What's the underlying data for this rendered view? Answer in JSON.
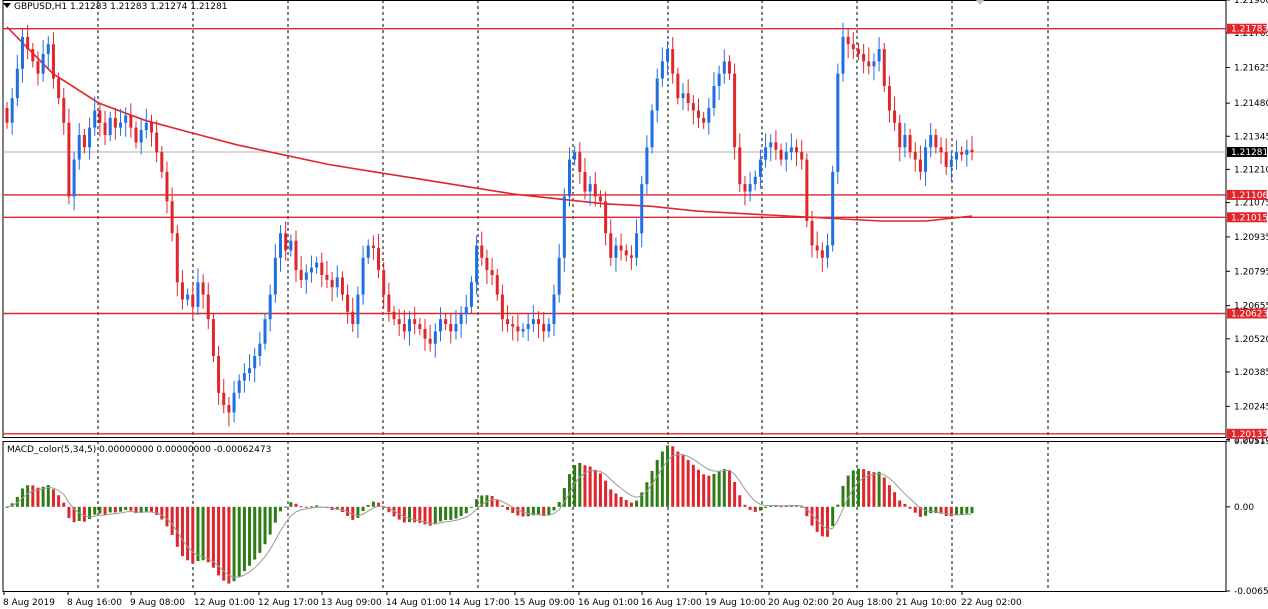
{
  "header": {
    "symbol_caption": "GBPUSD,H1  1.21283  1.21283  1.21274  1.21281",
    "menu_icon": "triangle-down-icon"
  },
  "colors": {
    "bull": "#1f6fe0",
    "bear": "#e0262c",
    "ma": "#e0262c",
    "level": "#e0262c",
    "grid": "#000000",
    "hist_up": "#2e7d14",
    "hist_down": "#e0262c",
    "signal": "#9a9a9a",
    "current_price_tag": "#000000"
  },
  "chart_data": [
    {
      "type": "candlestick",
      "title": "GBPUSD,H1",
      "ylim": [
        1.2012,
        1.219
      ],
      "y_ticks": [
        "1.21900",
        "1.21765",
        "1.21625",
        "1.21480",
        "1.21345",
        "1.21210",
        "1.21075",
        "1.20935",
        "1.20795",
        "1.20655",
        "1.20520",
        "1.20385",
        "1.20245",
        "1.20110"
      ],
      "x_tick_labels": [
        "8 Aug 2019",
        "8 Aug 16:00",
        "9 Aug 08:00",
        "12 Aug 01:00",
        "12 Aug 17:00",
        "13 Aug 09:00",
        "14 Aug 01:00",
        "14 Aug 17:00",
        "15 Aug 09:00",
        "16 Aug 01:00",
        "16 Aug 17:00",
        "19 Aug 10:00",
        "20 Aug 02:00",
        "20 Aug 18:00",
        "21 Aug 10:00",
        "22 Aug 02:00"
      ],
      "horizontal_levels": [
        {
          "price": 1.21783,
          "label": "1.21783"
        },
        {
          "price": 1.21106,
          "label": "1.21106"
        },
        {
          "price": 1.21015,
          "label": "1.21015"
        },
        {
          "price": 1.20623,
          "label": "1.20623"
        },
        {
          "price": 1.20133,
          "label": "1.20133"
        }
      ],
      "current_price": {
        "price": 1.21281,
        "label": "1.21281"
      },
      "moving_average": [
        1.2179,
        1.216,
        1.2148,
        1.2141,
        1.2136,
        1.2131,
        1.2127,
        1.2123,
        1.212,
        1.2117,
        1.2114,
        1.2111,
        1.2109,
        1.2107,
        1.2106,
        1.2104,
        1.2103,
        1.2102,
        1.2101,
        1.21,
        1.21,
        1.2102
      ],
      "closes": [
        1.214,
        1.215,
        1.2162,
        1.2175,
        1.217,
        1.2165,
        1.216,
        1.2168,
        1.2172,
        1.2158,
        1.215,
        1.214,
        1.211,
        1.2125,
        1.2135,
        1.213,
        1.2138,
        1.2145,
        1.214,
        1.2135,
        1.2142,
        1.2138,
        1.214,
        1.2143,
        1.2138,
        1.2132,
        1.2137,
        1.214,
        1.2136,
        1.2128,
        1.212,
        1.2108,
        1.2095,
        1.2075,
        1.2068,
        1.207,
        1.2065,
        1.2075,
        1.207,
        1.206,
        1.2045,
        1.203,
        1.2025,
        1.2022,
        1.203,
        1.2035,
        1.2038,
        1.204,
        1.2045,
        1.205,
        1.206,
        1.207,
        1.2085,
        1.2095,
        1.2088,
        1.2092,
        1.208,
        1.2076,
        1.2079,
        1.2081,
        1.2083,
        1.2078,
        1.2076,
        1.2073,
        1.2077,
        1.207,
        1.2063,
        1.2058,
        1.207,
        1.2085,
        1.209,
        1.2089,
        1.208,
        1.207,
        1.2063,
        1.206,
        1.2058,
        1.2055,
        1.206,
        1.2058,
        1.2056,
        1.2052,
        1.205,
        1.2055,
        1.206,
        1.2058,
        1.2055,
        1.2058,
        1.2062,
        1.2065,
        1.2075,
        1.209,
        1.2085,
        1.208,
        1.2078,
        1.207,
        1.206,
        1.2058,
        1.2057,
        1.2055,
        1.2056,
        1.2058,
        1.206,
        1.2058,
        1.2055,
        1.2058,
        1.207,
        1.2085,
        1.211,
        1.2125,
        1.2128,
        1.212,
        1.2112,
        1.2115,
        1.211,
        1.2108,
        1.2095,
        1.2085,
        1.209,
        1.2088,
        1.2086,
        1.2085,
        1.2095,
        1.2115,
        1.213,
        1.2145,
        1.2158,
        1.2165,
        1.217,
        1.216,
        1.215,
        1.2152,
        1.2148,
        1.2145,
        1.2142,
        1.214,
        1.2146,
        1.2155,
        1.216,
        1.2165,
        1.216,
        1.213,
        1.2115,
        1.2112,
        1.2115,
        1.2118,
        1.2125,
        1.213,
        1.2132,
        1.2129,
        1.2125,
        1.2128,
        1.213,
        1.2128,
        1.2125,
        1.21,
        1.209,
        1.2088,
        1.2085,
        1.209,
        1.212,
        1.216,
        1.2175,
        1.2172,
        1.217,
        1.2168,
        1.2165,
        1.2163,
        1.2165,
        1.217,
        1.2155,
        1.2145,
        1.214,
        1.213,
        1.2135,
        1.2128,
        1.2125,
        1.212,
        1.213,
        1.2135,
        1.213,
        1.2128,
        1.2122,
        1.2125,
        1.2128,
        1.2127,
        1.2129,
        1.2128
      ],
      "macd": {
        "label": "MACD_color(5,34,5) 0.00000000 0.00000000 -0.00062473",
        "ylim": [
          -0.00656,
          0.00513
        ],
        "y_ticks": [
          "0.00513",
          "0.00",
          "-0.00656"
        ]
      }
    }
  ],
  "overlays": {
    "close_icon": "close-x-icon"
  }
}
